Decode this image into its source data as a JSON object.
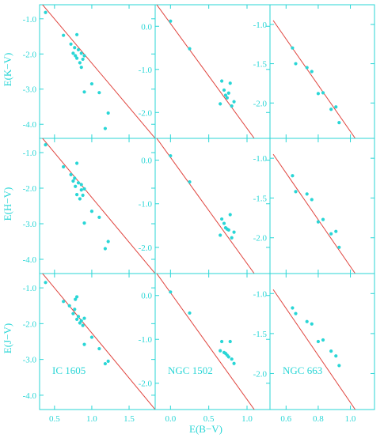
{
  "figure": {
    "xlabel": "E(B−V)",
    "row_ylabels": [
      "E(K−V)",
      "E(H−V)",
      "E(J−V)"
    ],
    "colors": {
      "axes": "#29d6d6",
      "points": "#29d6d6",
      "fit_line": "#e0453f"
    }
  },
  "chart_data": [
    {
      "type": "scatter",
      "row": 0,
      "col": 0,
      "cluster": "IC 1605",
      "ylabel": "E(K−V)",
      "xlim": [
        0.3,
        1.85
      ],
      "ylim": [
        -4.4,
        -0.6
      ],
      "xticks": [
        0.5,
        1.0,
        1.5
      ],
      "xtick_labels": [
        "0.5",
        "1.0",
        "1.5"
      ],
      "yticks": [
        -1.0,
        -2.0,
        -3.0,
        -4.0
      ],
      "ytick_labels": [
        "-1.0",
        "-2.0",
        "-3.0",
        "-4.0"
      ],
      "points": [
        [
          0.38,
          -0.82
        ],
        [
          0.62,
          -1.47
        ],
        [
          0.72,
          -1.72
        ],
        [
          0.75,
          -1.98
        ],
        [
          0.77,
          -1.82
        ],
        [
          0.78,
          -2.05
        ],
        [
          0.8,
          -1.45
        ],
        [
          0.8,
          -2.12
        ],
        [
          0.82,
          -1.88
        ],
        [
          0.84,
          -2.25
        ],
        [
          0.86,
          -1.98
        ],
        [
          0.86,
          -2.38
        ],
        [
          0.88,
          -2.15
        ],
        [
          0.9,
          -2.05
        ],
        [
          0.9,
          -3.08
        ],
        [
          1.0,
          -2.85
        ],
        [
          1.1,
          -3.1
        ],
        [
          1.22,
          -3.68
        ],
        [
          1.18,
          -4.12
        ]
      ],
      "fit_line": [
        [
          0.3,
          -0.5
        ],
        [
          1.85,
          -4.4
        ]
      ]
    },
    {
      "type": "scatter",
      "row": 0,
      "col": 1,
      "cluster": "NGC 1502",
      "ylabel": "E(K−V)",
      "xlim": [
        -0.2,
        1.3
      ],
      "ylim": [
        -2.6,
        0.5
      ],
      "xticks": [
        0.0,
        0.5,
        1.0
      ],
      "xtick_labels": [
        "0.0",
        "0.5",
        "1.0"
      ],
      "yticks": [
        0.0,
        -1.0,
        -2.0
      ],
      "ytick_labels": [
        "0.0",
        "-1.0",
        "-2.0"
      ],
      "points": [
        [
          0.0,
          0.12
        ],
        [
          0.25,
          -0.52
        ],
        [
          0.65,
          -1.8
        ],
        [
          0.67,
          -1.27
        ],
        [
          0.7,
          -1.48
        ],
        [
          0.72,
          -1.6
        ],
        [
          0.74,
          -1.66
        ],
        [
          0.76,
          -1.55
        ],
        [
          0.78,
          -1.32
        ],
        [
          0.8,
          -1.85
        ],
        [
          0.83,
          -1.75
        ]
      ],
      "fit_line": [
        [
          -0.2,
          0.55
        ],
        [
          1.3,
          -3.1
        ]
      ]
    },
    {
      "type": "scatter",
      "row": 0,
      "col": 2,
      "cluster": "NGC 663",
      "ylabel": "E(K−V)",
      "xlim": [
        0.5,
        1.15
      ],
      "ylim": [
        -2.45,
        -0.75
      ],
      "xticks": [
        0.6,
        0.8,
        1.0
      ],
      "xtick_labels": [
        "0.6",
        "0.8",
        "1.0"
      ],
      "yticks": [
        -1.0,
        -1.5,
        -2.0
      ],
      "ytick_labels": [
        "-1.0",
        "-1.5",
        "-2.0"
      ],
      "points": [
        [
          0.64,
          -1.3
        ],
        [
          0.66,
          -1.5
        ],
        [
          0.73,
          -1.55
        ],
        [
          0.76,
          -1.6
        ],
        [
          0.8,
          -1.88
        ],
        [
          0.83,
          -1.87
        ],
        [
          0.88,
          -2.08
        ],
        [
          0.91,
          -2.05
        ],
        [
          0.93,
          -2.25
        ]
      ],
      "fit_line": [
        [
          0.52,
          -0.95
        ],
        [
          1.03,
          -2.45
        ]
      ]
    },
    {
      "type": "scatter",
      "row": 1,
      "col": 0,
      "cluster": "IC 1605",
      "ylabel": "E(H−V)",
      "xlim": [
        0.3,
        1.85
      ],
      "ylim": [
        -4.4,
        -0.6
      ],
      "xticks": [
        0.5,
        1.0,
        1.5
      ],
      "xtick_labels": [
        "0.5",
        "1.0",
        "1.5"
      ],
      "yticks": [
        -1.0,
        -2.0,
        -3.0,
        -4.0
      ],
      "ytick_labels": [
        "-1.0",
        "-2.0",
        "-3.0",
        "-4.0"
      ],
      "points": [
        [
          0.38,
          -0.78
        ],
        [
          0.62,
          -1.4
        ],
        [
          0.72,
          -1.62
        ],
        [
          0.75,
          -1.8
        ],
        [
          0.77,
          -1.72
        ],
        [
          0.78,
          -1.95
        ],
        [
          0.8,
          -1.3
        ],
        [
          0.8,
          -2.18
        ],
        [
          0.82,
          -1.85
        ],
        [
          0.84,
          -2.3
        ],
        [
          0.86,
          -1.9
        ],
        [
          0.86,
          -2.05
        ],
        [
          0.88,
          -2.2
        ],
        [
          0.9,
          -2.02
        ],
        [
          0.9,
          -2.98
        ],
        [
          1.0,
          -2.65
        ],
        [
          1.1,
          -2.82
        ],
        [
          1.22,
          -3.5
        ],
        [
          1.18,
          -3.7
        ]
      ],
      "fit_line": [
        [
          0.3,
          -0.5
        ],
        [
          1.85,
          -4.4
        ]
      ]
    },
    {
      "type": "scatter",
      "row": 1,
      "col": 1,
      "cluster": "NGC 1502",
      "ylabel": "E(H−V)",
      "xlim": [
        -0.2,
        1.3
      ],
      "ylim": [
        -2.6,
        0.5
      ],
      "xticks": [
        0.0,
        0.5,
        1.0
      ],
      "xtick_labels": [
        "0.0",
        "0.5",
        "1.0"
      ],
      "yticks": [
        0.0,
        -1.0,
        -2.0
      ],
      "ytick_labels": [
        "0.0",
        "-1.0",
        "-2.0"
      ],
      "points": [
        [
          0.0,
          0.1
        ],
        [
          0.25,
          -0.5
        ],
        [
          0.65,
          -1.72
        ],
        [
          0.67,
          -1.35
        ],
        [
          0.7,
          -1.45
        ],
        [
          0.72,
          -1.55
        ],
        [
          0.74,
          -1.58
        ],
        [
          0.76,
          -1.6
        ],
        [
          0.78,
          -1.25
        ],
        [
          0.8,
          -1.78
        ],
        [
          0.83,
          -1.65
        ]
      ],
      "fit_line": [
        [
          -0.2,
          0.55
        ],
        [
          1.3,
          -3.1
        ]
      ]
    },
    {
      "type": "scatter",
      "row": 1,
      "col": 2,
      "cluster": "NGC 663",
      "ylabel": "E(H−V)",
      "xlim": [
        0.5,
        1.15
      ],
      "ylim": [
        -2.45,
        -0.75
      ],
      "xticks": [
        0.6,
        0.8,
        1.0
      ],
      "xtick_labels": [
        "0.6",
        "0.8",
        "1.0"
      ],
      "yticks": [
        -1.0,
        -1.5,
        -2.0
      ],
      "ytick_labels": [
        "-1.0",
        "-1.5",
        "-2.0"
      ],
      "points": [
        [
          0.64,
          -1.22
        ],
        [
          0.66,
          -1.42
        ],
        [
          0.73,
          -1.45
        ],
        [
          0.76,
          -1.52
        ],
        [
          0.8,
          -1.8
        ],
        [
          0.83,
          -1.77
        ],
        [
          0.88,
          -1.95
        ],
        [
          0.91,
          -1.92
        ],
        [
          0.93,
          -2.12
        ]
      ],
      "fit_line": [
        [
          0.52,
          -0.95
        ],
        [
          1.03,
          -2.45
        ]
      ]
    },
    {
      "type": "scatter",
      "row": 2,
      "col": 0,
      "cluster": "IC 1605",
      "ylabel": "E(J−V)",
      "xlim": [
        0.3,
        1.85
      ],
      "ylim": [
        -4.4,
        -0.6
      ],
      "xticks": [
        0.5,
        1.0,
        1.5
      ],
      "xtick_labels": [
        "0.5",
        "1.0",
        "1.5"
      ],
      "yticks": [
        -1.0,
        -2.0,
        -3.0,
        -4.0
      ],
      "ytick_labels": [
        "-1.0",
        "-2.0",
        "-3.0",
        "-4.0"
      ],
      "points": [
        [
          0.38,
          -0.85
        ],
        [
          0.62,
          -1.38
        ],
        [
          0.7,
          -1.5
        ],
        [
          0.75,
          -1.72
        ],
        [
          0.77,
          -1.6
        ],
        [
          0.78,
          -1.32
        ],
        [
          0.8,
          -1.25
        ],
        [
          0.8,
          -1.88
        ],
        [
          0.82,
          -1.8
        ],
        [
          0.84,
          -1.98
        ],
        [
          0.86,
          -1.92
        ],
        [
          0.88,
          -2.05
        ],
        [
          0.9,
          -1.85
        ],
        [
          0.9,
          -2.58
        ],
        [
          1.0,
          -2.38
        ],
        [
          1.1,
          -2.7
        ],
        [
          1.22,
          -3.05
        ],
        [
          1.18,
          -3.12
        ]
      ],
      "fit_line": [
        [
          0.3,
          -0.5
        ],
        [
          1.85,
          -4.4
        ]
      ]
    },
    {
      "type": "scatter",
      "row": 2,
      "col": 1,
      "cluster": "NGC 1502",
      "ylabel": "E(J−V)",
      "xlim": [
        -0.2,
        1.3
      ],
      "ylim": [
        -2.6,
        0.5
      ],
      "xticks": [
        0.0,
        0.5,
        1.0
      ],
      "xtick_labels": [
        "0.0",
        "0.5",
        "1.0"
      ],
      "yticks": [
        0.0,
        -1.0,
        -2.0
      ],
      "ytick_labels": [
        "0.0",
        "-1.0",
        "-2.0"
      ],
      "points": [
        [
          0.0,
          0.08
        ],
        [
          0.25,
          -0.4
        ],
        [
          0.65,
          -1.26
        ],
        [
          0.67,
          -1.05
        ],
        [
          0.7,
          -1.3
        ],
        [
          0.72,
          -1.32
        ],
        [
          0.74,
          -1.36
        ],
        [
          0.76,
          -1.4
        ],
        [
          0.78,
          -1.05
        ],
        [
          0.8,
          -1.45
        ],
        [
          0.83,
          -1.55
        ]
      ],
      "fit_line": [
        [
          -0.2,
          0.55
        ],
        [
          1.3,
          -3.1
        ]
      ]
    },
    {
      "type": "scatter",
      "row": 2,
      "col": 2,
      "cluster": "NGC 663",
      "ylabel": "E(J−V)",
      "xlim": [
        0.5,
        1.15
      ],
      "ylim": [
        -2.45,
        -0.75
      ],
      "xticks": [
        0.6,
        0.8,
        1.0
      ],
      "xtick_labels": [
        "0.6",
        "0.8",
        "1.0"
      ],
      "yticks": [
        -1.0,
        -1.5,
        -2.0
      ],
      "ytick_labels": [
        "-1.0",
        "-1.5",
        "-2.0"
      ],
      "points": [
        [
          0.64,
          -1.18
        ],
        [
          0.66,
          -1.25
        ],
        [
          0.73,
          -1.35
        ],
        [
          0.76,
          -1.38
        ],
        [
          0.8,
          -1.6
        ],
        [
          0.83,
          -1.58
        ],
        [
          0.88,
          -1.72
        ],
        [
          0.91,
          -1.78
        ],
        [
          0.93,
          -1.9
        ]
      ],
      "fit_line": [
        [
          0.52,
          -0.95
        ],
        [
          1.03,
          -2.45
        ]
      ]
    }
  ]
}
